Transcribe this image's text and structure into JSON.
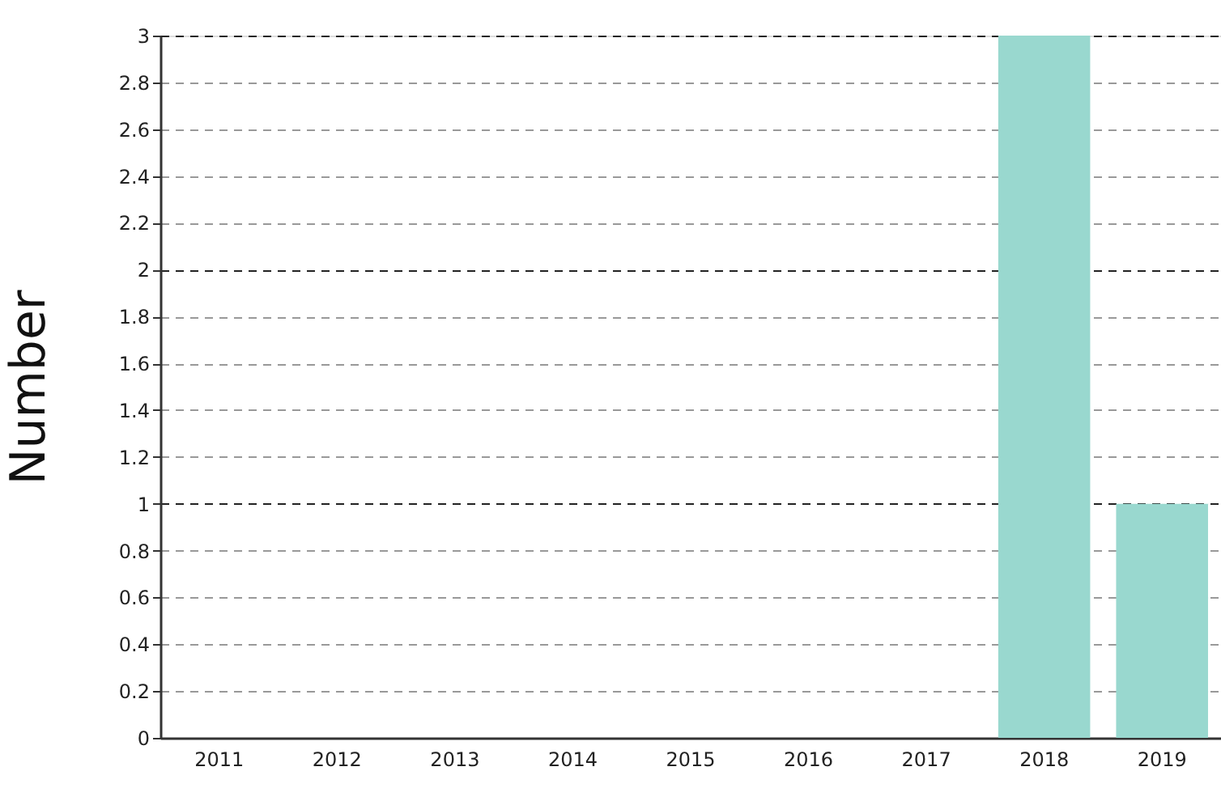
{
  "chart_data": {
    "type": "bar",
    "ylabel": "Number",
    "categories": [
      "2011",
      "2012",
      "2013",
      "2014",
      "2015",
      "2016",
      "2017",
      "2018",
      "2019"
    ],
    "values": [
      0,
      0,
      0,
      0,
      0,
      0,
      0,
      3,
      1
    ],
    "color": "#99d8cf",
    "ylim": [
      0,
      3
    ],
    "yticks": [
      0,
      0.2,
      0.4,
      0.6,
      0.8,
      1,
      1.2,
      1.4,
      1.6,
      1.8,
      2,
      2.2,
      2.4,
      2.6,
      2.8,
      3
    ],
    "grid": "y"
  }
}
